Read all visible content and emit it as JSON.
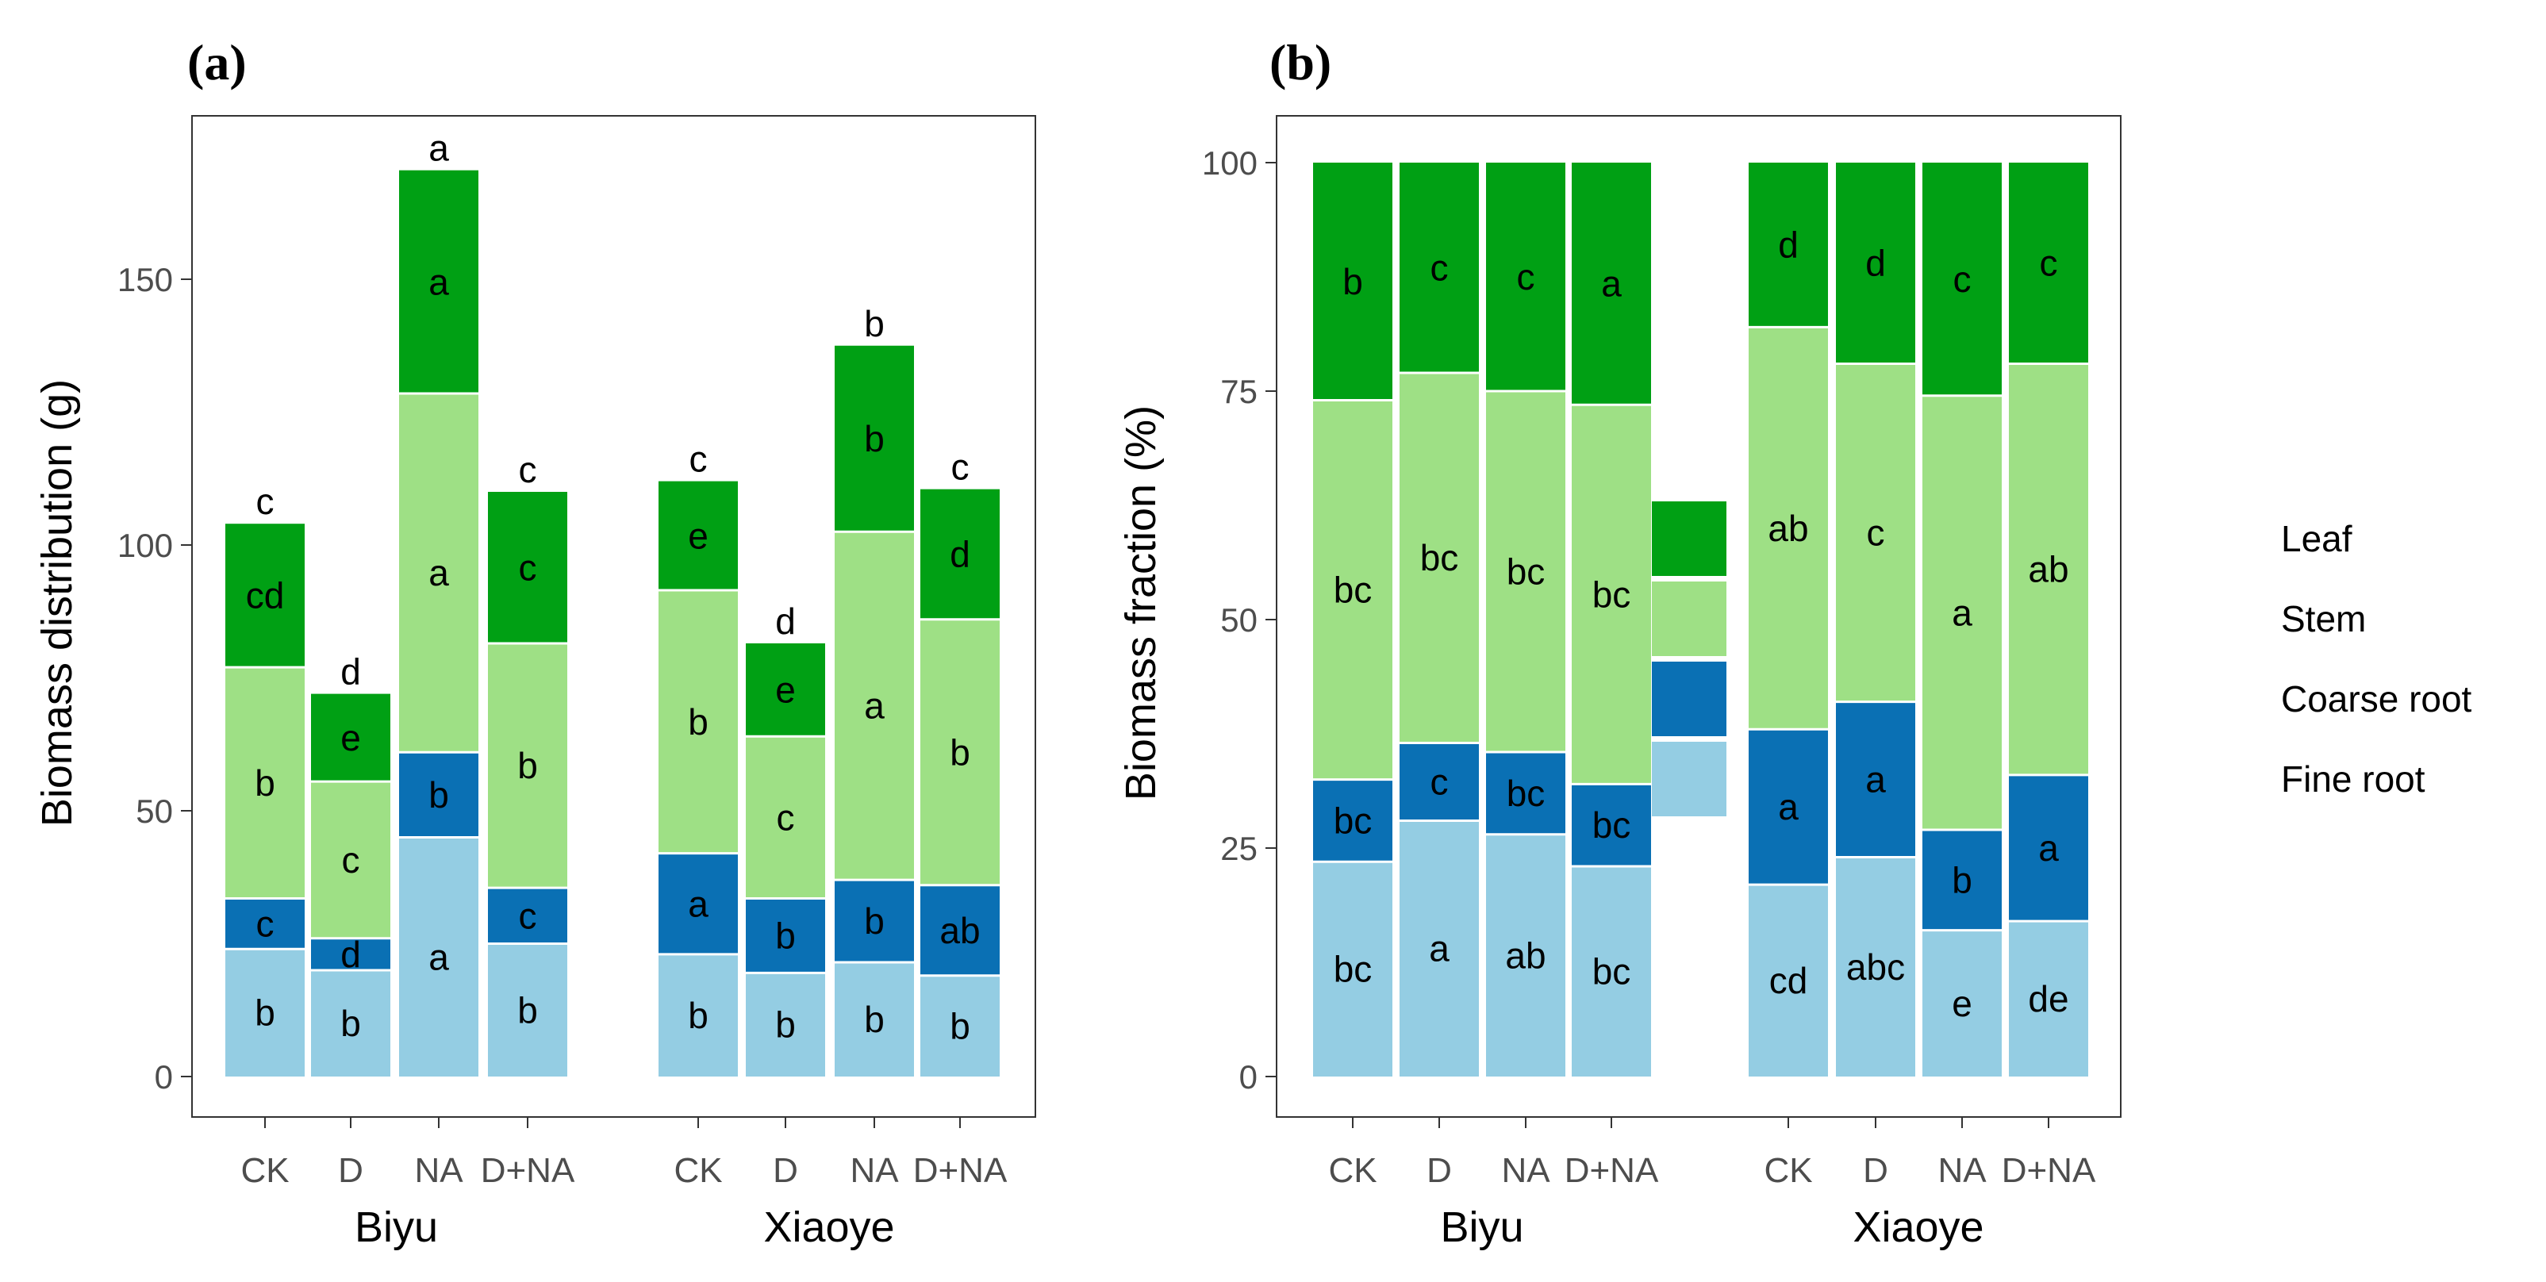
{
  "figure": {
    "panels": [
      "(a)",
      "(b)"
    ]
  },
  "legend": {
    "items": [
      {
        "label": "Leaf",
        "color": "#00a014"
      },
      {
        "label": "Stem",
        "color": "#9ee085"
      },
      {
        "label": "Coarse root",
        "color": "#0a70b4"
      },
      {
        "label": "Fine root",
        "color": "#94cde3"
      }
    ]
  },
  "chart_data": [
    {
      "type": "bar",
      "stacked": true,
      "panel": "(a)",
      "ylabel": "Biomass distribution (g)",
      "ylim": [
        0,
        180
      ],
      "yticks": [
        0,
        50,
        100,
        150
      ],
      "ytick_labels": [
        "0",
        "50",
        "100",
        "150"
      ],
      "grid": false,
      "groups": [
        "Biyu",
        "Xiaoye"
      ],
      "categories": [
        "CK",
        "D",
        "NA",
        "D+NA"
      ],
      "series": [
        {
          "name": "Fine root",
          "values": [
            [
              24,
              20,
              45,
              25
            ],
            [
              23,
              19.5,
              21.5,
              19
            ]
          ],
          "letters": [
            [
              "b",
              "b",
              "a",
              "b"
            ],
            [
              "b",
              "b",
              "b",
              "b"
            ]
          ]
        },
        {
          "name": "Coarse root",
          "values": [
            [
              9.5,
              6,
              16,
              10.5
            ],
            [
              19,
              14,
              15.5,
              17
            ]
          ],
          "letters": [
            [
              "c",
              "d",
              "b",
              "c"
            ],
            [
              "a",
              "b",
              "b",
              "ab"
            ]
          ]
        },
        {
          "name": "Stem",
          "values": [
            [
              43.5,
              29.5,
              67.5,
              46
            ],
            [
              49.5,
              30.5,
              65.5,
              50
            ]
          ],
          "letters": [
            [
              "b",
              "c",
              "a",
              "b"
            ],
            [
              "b",
              "c",
              "a",
              "b"
            ]
          ]
        },
        {
          "name": "Leaf",
          "values": [
            [
              27,
              16.5,
              42,
              28.5
            ],
            [
              20.5,
              17.5,
              35,
              24.5
            ]
          ],
          "letters": [
            [
              "cd",
              "e",
              "a",
              "c"
            ],
            [
              "e",
              "e",
              "b",
              "d"
            ]
          ]
        }
      ],
      "totals": [
        [
          104,
          72,
          170.5,
          110
        ],
        [
          112,
          81.5,
          137.5,
          110.5
        ]
      ],
      "total_letters": [
        [
          "c",
          "d",
          "a",
          "c"
        ],
        [
          "c",
          "d",
          "b",
          "c"
        ]
      ]
    },
    {
      "type": "bar",
      "stacked": true,
      "panel": "(b)",
      "ylabel": "Biomass fraction (%)",
      "ylim": [
        0,
        105
      ],
      "yticks": [
        0,
        25,
        50,
        75,
        100
      ],
      "ytick_labels": [
        "0",
        "25",
        "50",
        "75",
        "100"
      ],
      "grid": false,
      "groups": [
        "Biyu",
        "Xiaoye"
      ],
      "categories": [
        "CK",
        "D",
        "NA",
        "D+NA"
      ],
      "series": [
        {
          "name": "Fine root",
          "values": [
            [
              23.5,
              28,
              26.5,
              23
            ],
            [
              21,
              24,
              16,
              17
            ]
          ],
          "letters": [
            [
              "bc",
              "a",
              "ab",
              "bc"
            ],
            [
              "cd",
              "abc",
              "e",
              "de"
            ]
          ]
        },
        {
          "name": "Coarse root",
          "values": [
            [
              9,
              8.5,
              9,
              9
            ],
            [
              17,
              17,
              11,
              16
            ]
          ],
          "letters": [
            [
              "bc",
              "c",
              "bc",
              "bc"
            ],
            [
              "a",
              "a",
              "b",
              "a"
            ]
          ]
        },
        {
          "name": "Stem",
          "values": [
            [
              41.5,
              40.5,
              39.5,
              41.5
            ],
            [
              44,
              37,
              47.5,
              45
            ]
          ],
          "letters": [
            [
              "bc",
              "bc",
              "bc",
              "bc"
            ],
            [
              "ab",
              "c",
              "a",
              "ab"
            ]
          ]
        },
        {
          "name": "Leaf",
          "values": [
            [
              26,
              23,
              25,
              26.5
            ],
            [
              18,
              22,
              25.5,
              22
            ]
          ],
          "letters": [
            [
              "b",
              "c",
              "c",
              "a"
            ],
            [
              "d",
              "d",
              "c",
              "c"
            ]
          ]
        }
      ]
    }
  ]
}
